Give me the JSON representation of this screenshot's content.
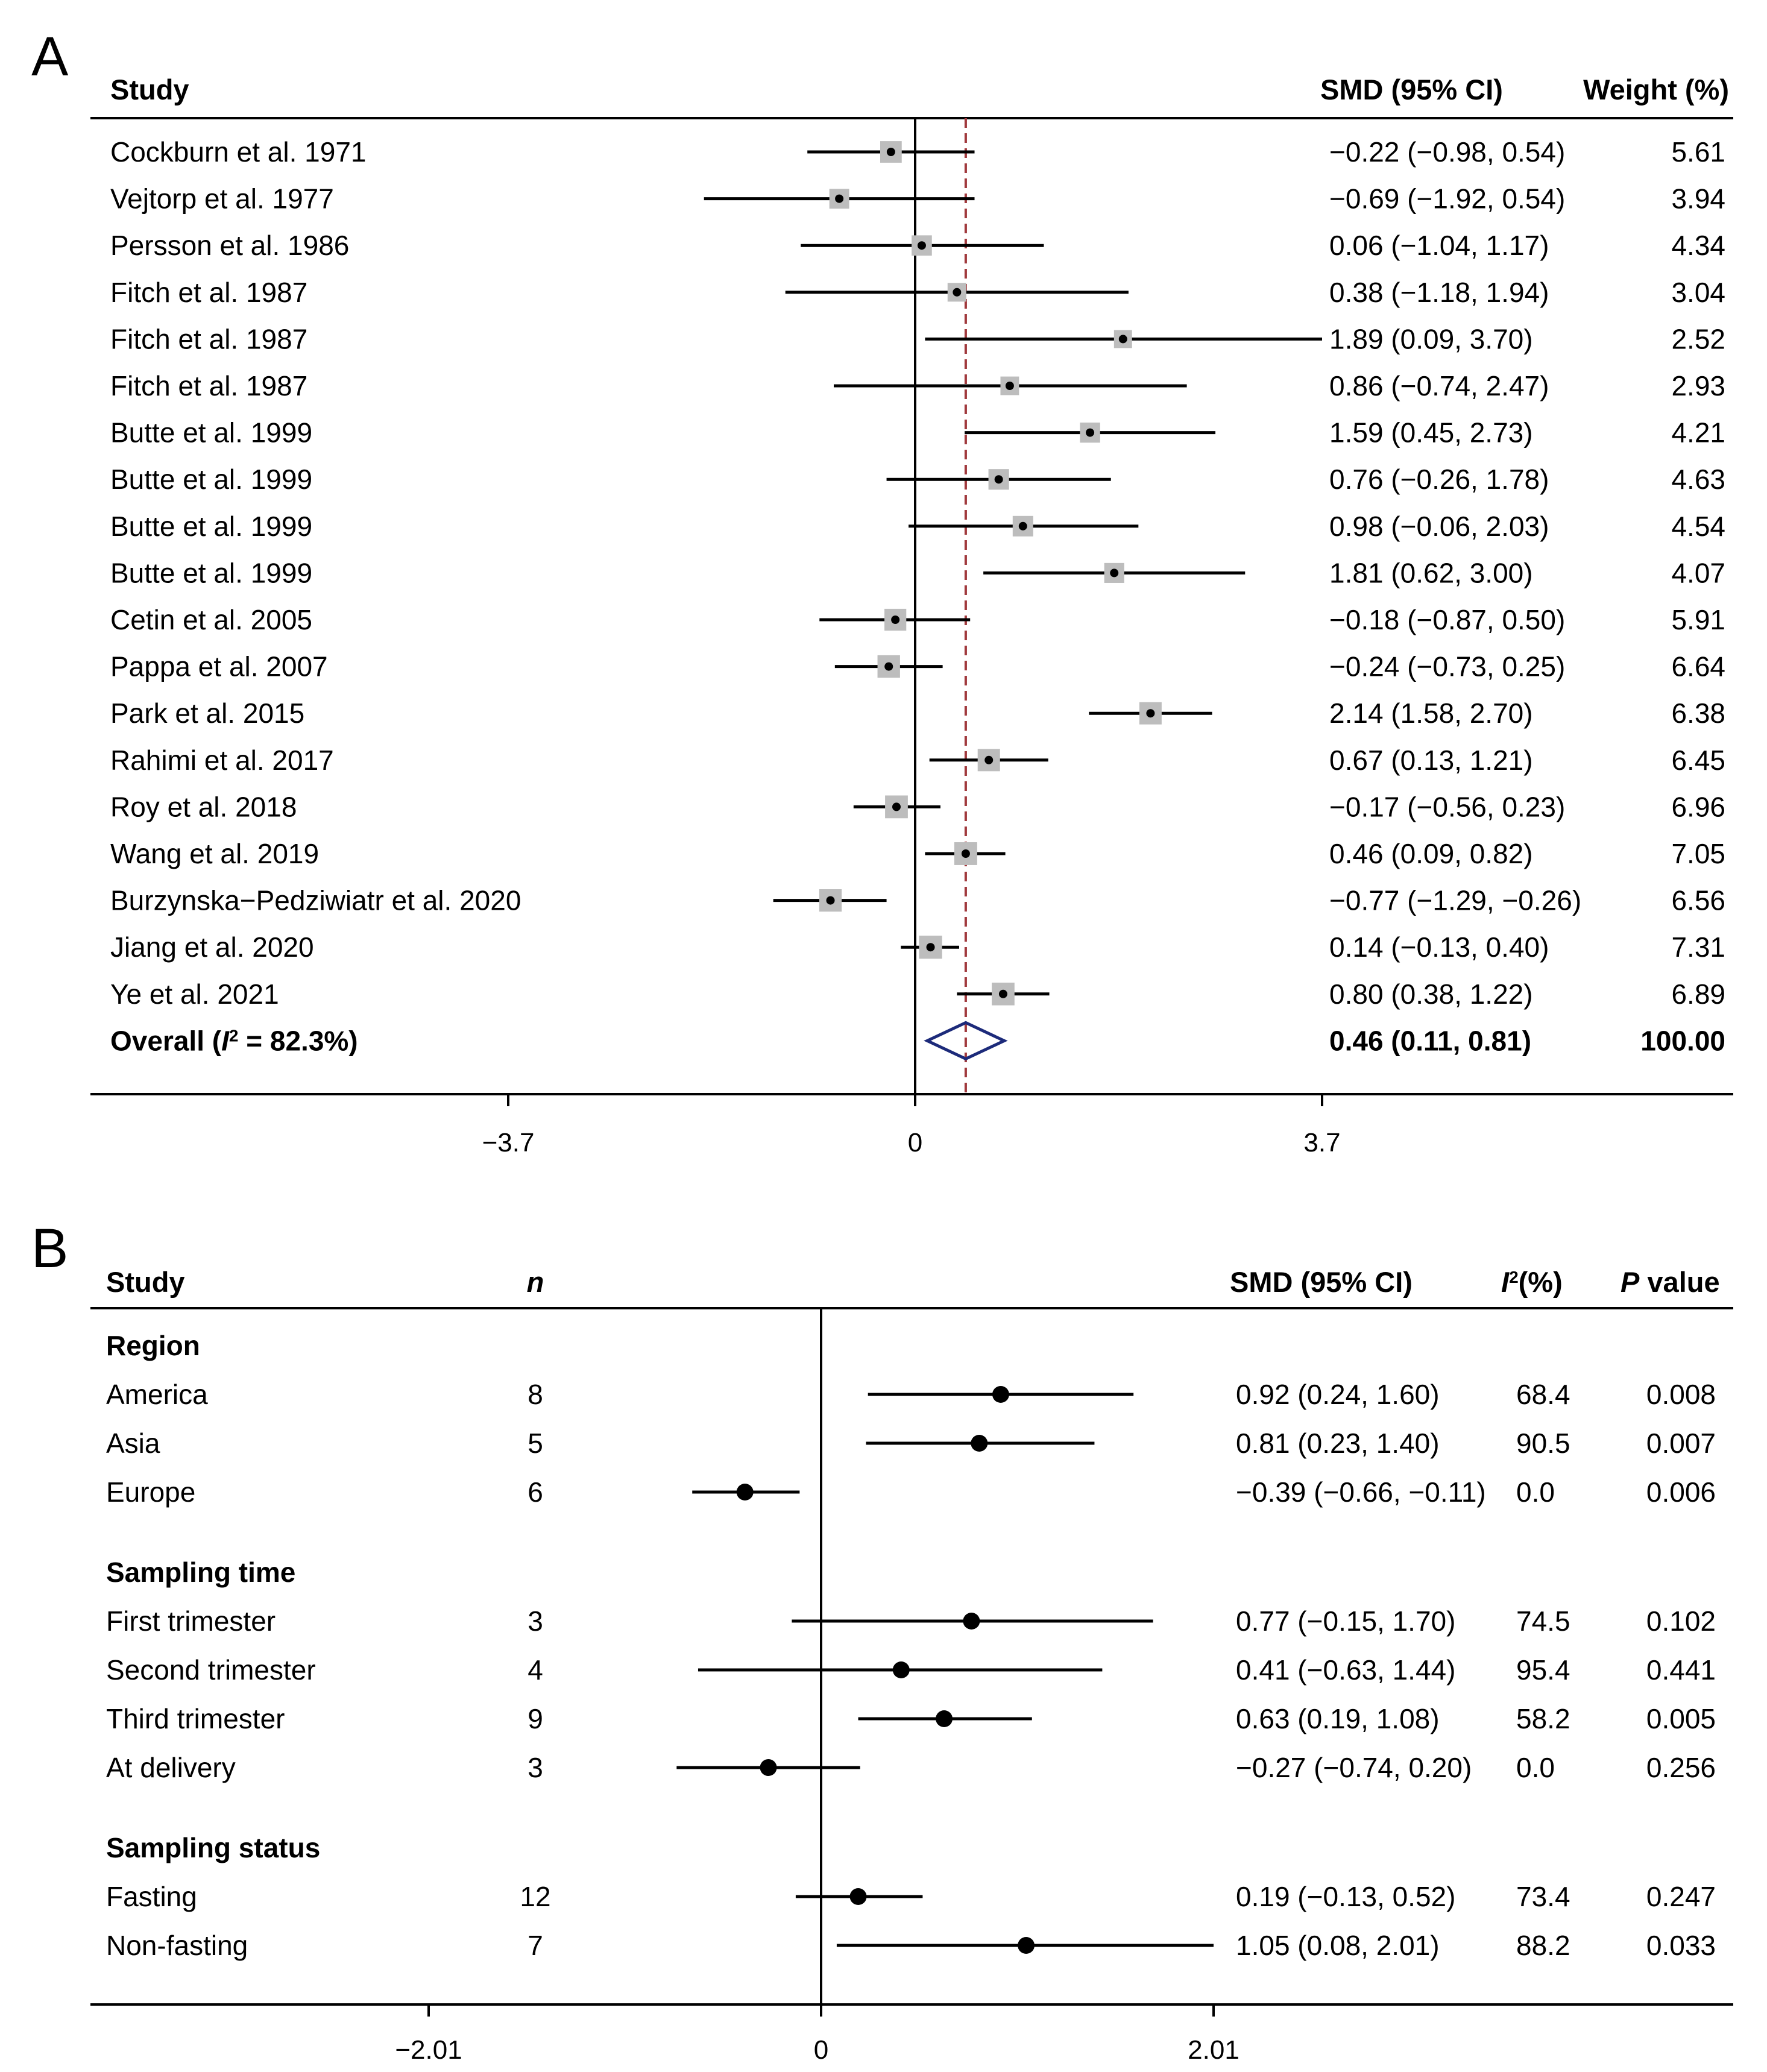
{
  "chart_data": [
    {
      "type": "forest",
      "panel_label": "A",
      "headers": {
        "study": "Study",
        "estimate": "SMD (95% CI)",
        "weight": "Weight (%)"
      },
      "studies": [
        {
          "study": "Cockburn et al. 1971",
          "smd": -0.22,
          "lower": -0.98,
          "upper": 0.54,
          "ci_text": "−0.22 (−0.98, 0.54)",
          "weight": "5.61"
        },
        {
          "study": "Vejtorp et al. 1977",
          "smd": -0.69,
          "lower": -1.92,
          "upper": 0.54,
          "ci_text": "−0.69 (−1.92, 0.54)",
          "weight": "3.94"
        },
        {
          "study": "Persson et al. 1986",
          "smd": 0.06,
          "lower": -1.04,
          "upper": 1.17,
          "ci_text": "0.06 (−1.04, 1.17)",
          "weight": "4.34"
        },
        {
          "study": "Fitch et al. 1987",
          "smd": 0.38,
          "lower": -1.18,
          "upper": 1.94,
          "ci_text": "0.38 (−1.18, 1.94)",
          "weight": "3.04"
        },
        {
          "study": "Fitch et al. 1987",
          "smd": 1.89,
          "lower": 0.09,
          "upper": 3.7,
          "ci_text": "1.89 (0.09, 3.70)",
          "weight": "2.52"
        },
        {
          "study": "Fitch et al. 1987",
          "smd": 0.86,
          "lower": -0.74,
          "upper": 2.47,
          "ci_text": "0.86 (−0.74, 2.47)",
          "weight": "2.93"
        },
        {
          "study": "Butte et al. 1999",
          "smd": 1.59,
          "lower": 0.45,
          "upper": 2.73,
          "ci_text": "1.59 (0.45, 2.73)",
          "weight": "4.21"
        },
        {
          "study": "Butte et al. 1999",
          "smd": 0.76,
          "lower": -0.26,
          "upper": 1.78,
          "ci_text": "0.76 (−0.26, 1.78)",
          "weight": "4.63"
        },
        {
          "study": "Butte et al. 1999",
          "smd": 0.98,
          "lower": -0.06,
          "upper": 2.03,
          "ci_text": "0.98 (−0.06, 2.03)",
          "weight": "4.54"
        },
        {
          "study": "Butte et al. 1999",
          "smd": 1.81,
          "lower": 0.62,
          "upper": 3.0,
          "ci_text": "1.81 (0.62, 3.00)",
          "weight": "4.07"
        },
        {
          "study": "Cetin et al. 2005",
          "smd": -0.18,
          "lower": -0.87,
          "upper": 0.5,
          "ci_text": "−0.18 (−0.87, 0.50)",
          "weight": "5.91"
        },
        {
          "study": "Pappa et al. 2007",
          "smd": -0.24,
          "lower": -0.73,
          "upper": 0.25,
          "ci_text": "−0.24 (−0.73, 0.25)",
          "weight": "6.64"
        },
        {
          "study": "Park et al. 2015",
          "smd": 2.14,
          "lower": 1.58,
          "upper": 2.7,
          "ci_text": "2.14 (1.58, 2.70)",
          "weight": "6.38"
        },
        {
          "study": "Rahimi et al. 2017",
          "smd": 0.67,
          "lower": 0.13,
          "upper": 1.21,
          "ci_text": "0.67 (0.13, 1.21)",
          "weight": "6.45"
        },
        {
          "study": "Roy et al. 2018",
          "smd": -0.17,
          "lower": -0.56,
          "upper": 0.23,
          "ci_text": "−0.17 (−0.56, 0.23)",
          "weight": "6.96"
        },
        {
          "study": "Wang et al. 2019",
          "smd": 0.46,
          "lower": 0.09,
          "upper": 0.82,
          "ci_text": "0.46 (0.09, 0.82)",
          "weight": "7.05"
        },
        {
          "study": "Burzynska−Pedziwiatr et al. 2020",
          "smd": -0.77,
          "lower": -1.29,
          "upper": -0.26,
          "ci_text": "−0.77 (−1.29, −0.26)",
          "weight": "6.56"
        },
        {
          "study": "Jiang et al. 2020",
          "smd": 0.14,
          "lower": -0.13,
          "upper": 0.4,
          "ci_text": "0.14 (−0.13, 0.40)",
          "weight": "7.31"
        },
        {
          "study": "Ye et al. 2021",
          "smd": 0.8,
          "lower": 0.38,
          "upper": 1.22,
          "ci_text": "0.80 (0.38, 1.22)",
          "weight": "6.89"
        }
      ],
      "overall": {
        "label_prefix": "Overall  (",
        "i2_symbol": "I",
        "i2_sup": "2",
        "label_suffix": " = 82.3%)",
        "smd": 0.46,
        "lower": 0.11,
        "upper": 0.81,
        "ci_text": "0.46 (0.11, 0.81)",
        "weight": "100.00"
      },
      "x_ticks": [
        {
          "value": -3.7,
          "label": "−3.7"
        },
        {
          "value": 0,
          "label": "0"
        },
        {
          "value": 3.7,
          "label": "3.7"
        }
      ],
      "xlim": [
        -7.45,
        7.45
      ],
      "reference_line": 0,
      "pooled_line": 0.46,
      "colors": {
        "box": "#bdbdbd",
        "line": "#000000",
        "pooled_line": "#a0393c",
        "diamond": "#1c2a7a"
      }
    },
    {
      "type": "forest-subgroup",
      "panel_label": "B",
      "headers": {
        "study": "Study",
        "n": "n",
        "estimate": "SMD (95% CI)",
        "i2_symbol": "I",
        "i2_sup": "2",
        "i2_suffix": "(%)",
        "p_symbol": "P",
        "p_suffix": " value"
      },
      "groups": [
        {
          "name": "Region",
          "rows": [
            {
              "label": "America",
              "n": "8",
              "smd": 0.92,
              "lower": 0.24,
              "upper": 1.6,
              "ci_text": "0.92 (0.24, 1.60)",
              "i2": "68.4",
              "p": "0.008"
            },
            {
              "label": "Asia",
              "n": "5",
              "smd": 0.81,
              "lower": 0.23,
              "upper": 1.4,
              "ci_text": "0.81 (0.23, 1.40)",
              "i2": "90.5",
              "p": "0.007"
            },
            {
              "label": "Europe",
              "n": "6",
              "smd": -0.39,
              "lower": -0.66,
              "upper": -0.11,
              "ci_text": "−0.39 (−0.66, −0.11)",
              "i2": "0.0",
              "p": "0.006"
            }
          ]
        },
        {
          "name": "Sampling time",
          "rows": [
            {
              "label": "First trimester",
              "n": "3",
              "smd": 0.77,
              "lower": -0.15,
              "upper": 1.7,
              "ci_text": "0.77 (−0.15, 1.70)",
              "i2": "74.5",
              "p": "0.102"
            },
            {
              "label": "Second trimester",
              "n": "4",
              "smd": 0.41,
              "lower": -0.63,
              "upper": 1.44,
              "ci_text": "0.41 (−0.63, 1.44)",
              "i2": "95.4",
              "p": "0.441"
            },
            {
              "label": "Third trimester",
              "n": "9",
              "smd": 0.63,
              "lower": 0.19,
              "upper": 1.08,
              "ci_text": "0.63 (0.19, 1.08)",
              "i2": "58.2",
              "p": "0.005"
            },
            {
              "label": "At delivery",
              "n": "3",
              "smd": -0.27,
              "lower": -0.74,
              "upper": 0.2,
              "ci_text": "−0.27 (−0.74, 0.20)",
              "i2": "0.0",
              "p": "0.256"
            }
          ]
        },
        {
          "name": "Sampling status",
          "rows": [
            {
              "label": "Fasting",
              "n": "12",
              "smd": 0.19,
              "lower": -0.13,
              "upper": 0.52,
              "ci_text": "0.19 (−0.13, 0.52)",
              "i2": "73.4",
              "p": "0.247"
            },
            {
              "label": "Non-fasting",
              "n": "7",
              "smd": 1.05,
              "lower": 0.08,
              "upper": 2.01,
              "ci_text": "1.05 (0.08, 2.01)",
              "i2": "88.2",
              "p": "0.033"
            }
          ]
        }
      ],
      "x_ticks": [
        {
          "value": -2.01,
          "label": "−2.01"
        },
        {
          "value": 0,
          "label": "0"
        },
        {
          "value": 2.01,
          "label": "2.01"
        }
      ],
      "xlim": [
        -3.77,
        4.45
      ],
      "reference_line": 0,
      "colors": {
        "point": "#000000",
        "line": "#000000"
      }
    }
  ]
}
